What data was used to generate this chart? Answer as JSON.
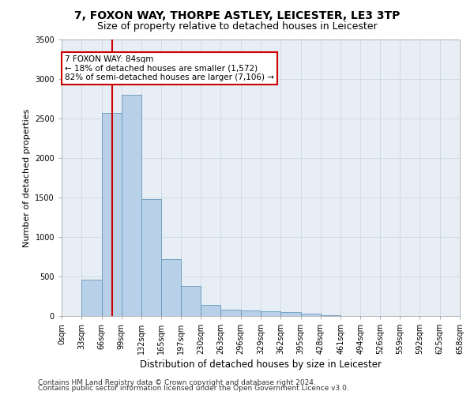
{
  "title1": "7, FOXON WAY, THORPE ASTLEY, LEICESTER, LE3 3TP",
  "title2": "Size of property relative to detached houses in Leicester",
  "xlabel": "Distribution of detached houses by size in Leicester",
  "ylabel": "Number of detached properties",
  "bin_edges": [
    0,
    33,
    66,
    99,
    132,
    165,
    197,
    230,
    263,
    296,
    329,
    362,
    395,
    428,
    461,
    494,
    526,
    559,
    592,
    625,
    658
  ],
  "bin_labels": [
    "0sqm",
    "33sqm",
    "66sqm",
    "99sqm",
    "132sqm",
    "165sqm",
    "197sqm",
    "230sqm",
    "263sqm",
    "296sqm",
    "329sqm",
    "362sqm",
    "395sqm",
    "428sqm",
    "461sqm",
    "494sqm",
    "526sqm",
    "559sqm",
    "592sqm",
    "625sqm",
    "658sqm"
  ],
  "bar_values": [
    5,
    460,
    2570,
    2800,
    1480,
    720,
    380,
    140,
    80,
    70,
    60,
    50,
    30,
    10,
    5,
    5,
    3,
    3,
    2,
    2
  ],
  "bar_color": "#b8d0e8",
  "bar_edge_color": "#6699bb",
  "property_sqm": 84,
  "red_line_color": "#cc0000",
  "annotation_line1": "7 FOXON WAY: 84sqm",
  "annotation_line2": "← 18% of detached houses are smaller (1,572)",
  "annotation_line3": "82% of semi-detached houses are larger (7,106) →",
  "annotation_box_color": "#ffffff",
  "annotation_box_edge_color": "#cc0000",
  "ylim": [
    0,
    3500
  ],
  "yticks": [
    0,
    500,
    1000,
    1500,
    2000,
    2500,
    3000,
    3500
  ],
  "footer1": "Contains HM Land Registry data © Crown copyright and database right 2024.",
  "footer2": "Contains public sector information licensed under the Open Government Licence v3.0.",
  "title1_fontsize": 10,
  "title2_fontsize": 9,
  "xlabel_fontsize": 8.5,
  "ylabel_fontsize": 8,
  "tick_fontsize": 7,
  "annotation_fontsize": 7.5,
  "footer_fontsize": 6.5,
  "bg_color": "#e8eef5"
}
